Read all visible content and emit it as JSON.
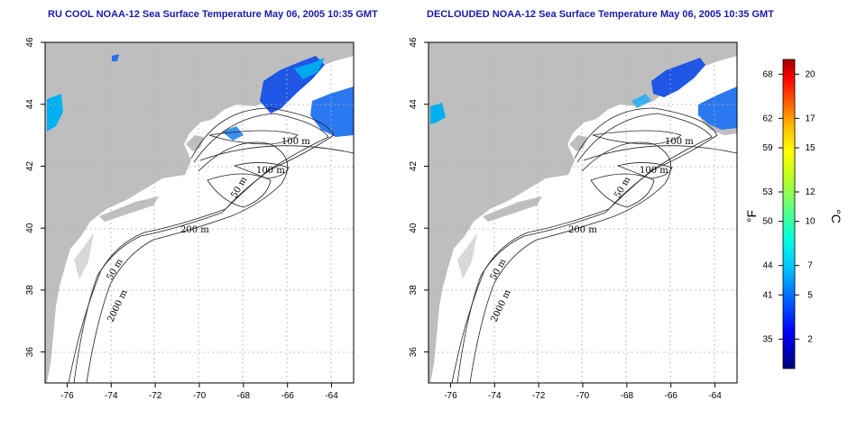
{
  "panels": [
    {
      "title": "RU COOL NOAA-12 Sea Surface Temperature May 06, 2005 10:35 GMT",
      "contour_labels": [
        "100 m",
        "100 m",
        "50 m",
        "200 m",
        "50 m",
        "2000 m"
      ]
    },
    {
      "title": "DECLOUDED NOAA-12 Sea Surface Temperature May 06, 2005 10:35 GMT",
      "contour_labels": [
        "100 m",
        "100 m",
        "50 m",
        "200 m",
        "50 m",
        "2000 m"
      ]
    }
  ],
  "map_axes": {
    "lon_ticks": [
      "-76",
      "-74",
      "-72",
      "-70",
      "-68",
      "-66",
      "-64"
    ],
    "lat_ticks": [
      "46",
      "44",
      "42",
      "40",
      "38",
      "36"
    ],
    "lon_range": [
      -77,
      -63
    ],
    "lat_range": [
      35,
      46
    ]
  },
  "colorbar": {
    "fahrenheit_ticks": [
      "68",
      "62",
      "59",
      "53",
      "50",
      "44",
      "41",
      "35"
    ],
    "celsius_ticks": [
      "20",
      "17",
      "15",
      "12",
      "10",
      "7",
      "5",
      "2"
    ],
    "fahrenheit_label": "°F",
    "celsius_label": "°C",
    "colors": [
      "#000080",
      "#0000ff",
      "#0060ff",
      "#00c0ff",
      "#00ffe0",
      "#60ff80",
      "#c0ff20",
      "#ffff00",
      "#ffc000",
      "#ff6000",
      "#ff0000",
      "#a00000"
    ]
  },
  "colors": {
    "land": "#bebebe",
    "title": "#1a1aa6",
    "gridline": "#b0b0b0"
  }
}
